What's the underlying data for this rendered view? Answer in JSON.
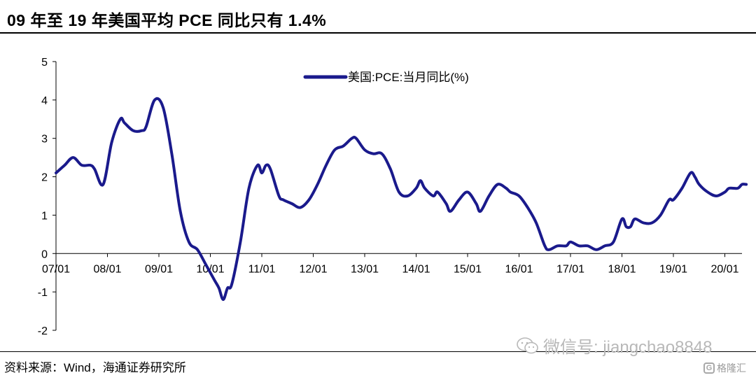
{
  "header": {
    "title": "09 年至 19 年美国平均 PCE 同比只有 1.4%"
  },
  "footer": {
    "source": "资料来源：Wind，海通证券研究所",
    "watermark_text": "微信号: jiangchao8848",
    "brand_text": "格隆汇",
    "brand_glyph": "G",
    "wechat_icon": "wechat-icon"
  },
  "colors": {
    "series": "#1a1a8c"
  },
  "chart_data": {
    "type": "line",
    "title": "",
    "xlabel": "",
    "ylabel": "",
    "ylim": [
      -2,
      5
    ],
    "yticks": [
      -2,
      -1,
      0,
      1,
      2,
      3,
      4,
      5
    ],
    "xlim": [
      "2007-01",
      "2020-05"
    ],
    "xticks": [
      "07/01",
      "08/01",
      "09/01",
      "10/01",
      "11/01",
      "12/01",
      "13/01",
      "14/01",
      "15/01",
      "16/01",
      "17/01",
      "18/01",
      "19/01",
      "20/01"
    ],
    "legend_position": "top-center",
    "grid": false,
    "series": [
      {
        "name": "美国:PCE:当月同比(%)",
        "color": "#1a1a8c",
        "points": [
          [
            "2007-01",
            2.1
          ],
          [
            "2007-03",
            2.3
          ],
          [
            "2007-05",
            2.5
          ],
          [
            "2007-07",
            2.3
          ],
          [
            "2007-09",
            2.3
          ],
          [
            "2007-10",
            2.2
          ],
          [
            "2007-12",
            1.8
          ],
          [
            "2008-02",
            2.9
          ],
          [
            "2008-04",
            3.5
          ],
          [
            "2008-05",
            3.4
          ],
          [
            "2008-07",
            3.2
          ],
          [
            "2008-09",
            3.2
          ],
          [
            "2008-10",
            3.3
          ],
          [
            "2008-12",
            4.0
          ],
          [
            "2009-02",
            3.8
          ],
          [
            "2009-04",
            2.6
          ],
          [
            "2009-06",
            1.1
          ],
          [
            "2009-08",
            0.3
          ],
          [
            "2009-10",
            0.1
          ],
          [
            "2009-12",
            -0.3
          ],
          [
            "2010-02",
            -0.7
          ],
          [
            "2010-03",
            -0.9
          ],
          [
            "2010-04",
            -1.2
          ],
          [
            "2010-05",
            -0.9
          ],
          [
            "2010-06",
            -0.8
          ],
          [
            "2010-08",
            0.3
          ],
          [
            "2010-10",
            1.7
          ],
          [
            "2010-12",
            2.3
          ],
          [
            "2011-01",
            2.1
          ],
          [
            "2011-02",
            2.3
          ],
          [
            "2011-03",
            2.2
          ],
          [
            "2011-05",
            1.5
          ],
          [
            "2011-06",
            1.4
          ],
          [
            "2011-08",
            1.3
          ],
          [
            "2011-10",
            1.2
          ],
          [
            "2011-12",
            1.4
          ],
          [
            "2012-02",
            1.8
          ],
          [
            "2012-04",
            2.3
          ],
          [
            "2012-06",
            2.7
          ],
          [
            "2012-08",
            2.8
          ],
          [
            "2012-10",
            3.0
          ],
          [
            "2012-11",
            3.0
          ],
          [
            "2013-01",
            2.7
          ],
          [
            "2013-03",
            2.6
          ],
          [
            "2013-05",
            2.6
          ],
          [
            "2013-07",
            2.2
          ],
          [
            "2013-09",
            1.6
          ],
          [
            "2013-11",
            1.5
          ],
          [
            "2014-01",
            1.7
          ],
          [
            "2014-02",
            1.9
          ],
          [
            "2014-03",
            1.7
          ],
          [
            "2014-05",
            1.5
          ],
          [
            "2014-06",
            1.6
          ],
          [
            "2014-08",
            1.3
          ],
          [
            "2014-09",
            1.1
          ],
          [
            "2014-11",
            1.4
          ],
          [
            "2015-01",
            1.6
          ],
          [
            "2015-03",
            1.3
          ],
          [
            "2015-04",
            1.1
          ],
          [
            "2015-06",
            1.5
          ],
          [
            "2015-08",
            1.8
          ],
          [
            "2015-10",
            1.7
          ],
          [
            "2015-11",
            1.6
          ],
          [
            "2016-01",
            1.5
          ],
          [
            "2016-03",
            1.2
          ],
          [
            "2016-05",
            0.8
          ],
          [
            "2016-07",
            0.2
          ],
          [
            "2016-08",
            0.1
          ],
          [
            "2016-10",
            0.2
          ],
          [
            "2016-12",
            0.2
          ],
          [
            "2017-01",
            0.3
          ],
          [
            "2017-03",
            0.2
          ],
          [
            "2017-05",
            0.2
          ],
          [
            "2017-07",
            0.1
          ],
          [
            "2017-09",
            0.2
          ],
          [
            "2017-11",
            0.3
          ],
          [
            "2018-01",
            0.9
          ],
          [
            "2018-02",
            0.7
          ],
          [
            "2018-03",
            0.7
          ],
          [
            "2018-04",
            0.9
          ],
          [
            "2018-06",
            0.8
          ],
          [
            "2018-08",
            0.8
          ],
          [
            "2018-10",
            1.0
          ],
          [
            "2018-12",
            1.4
          ],
          [
            "2019-01",
            1.4
          ],
          [
            "2019-03",
            1.7
          ],
          [
            "2019-05",
            2.1
          ],
          [
            "2019-06",
            2.0
          ],
          [
            "2019-07",
            1.8
          ],
          [
            "2019-09",
            1.6
          ],
          [
            "2019-11",
            1.5
          ],
          [
            "2020-01",
            1.6
          ],
          [
            "2020-02",
            1.7
          ],
          [
            "2020-04",
            1.7
          ],
          [
            "2020-05",
            1.8
          ],
          [
            "2020-06",
            1.8
          ]
        ]
      }
    ]
  }
}
